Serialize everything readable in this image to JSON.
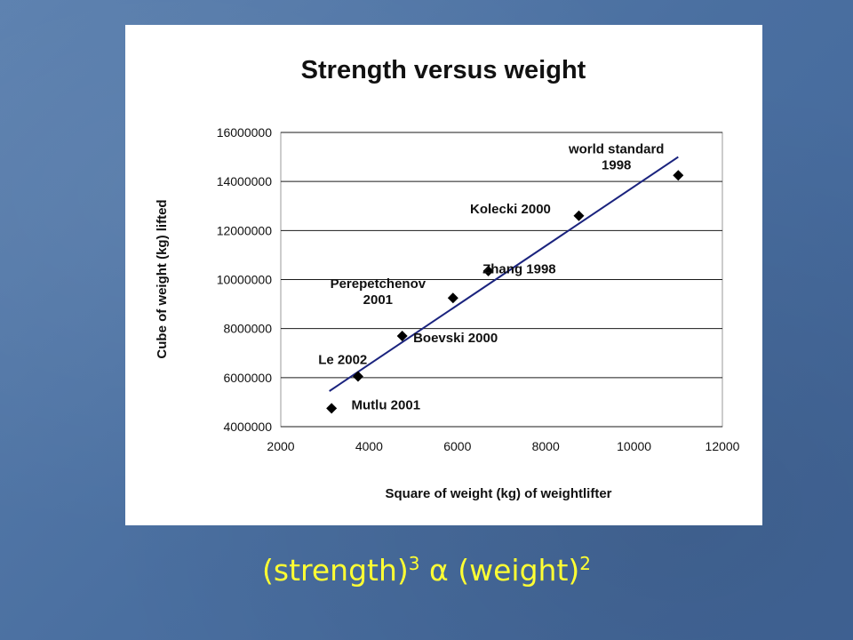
{
  "chart_data": {
    "type": "scatter",
    "title": "Strength versus weight",
    "xlabel": "Square of weight (kg) of weightlifter",
    "ylabel": "Cube of weight (kg) lifted",
    "xlim": [
      2000,
      12000
    ],
    "ylim": [
      4000000,
      16000000
    ],
    "xticks": [
      "2000",
      "4000",
      "6000",
      "8000",
      "10000",
      "12000"
    ],
    "yticks": [
      "4000000",
      "6000000",
      "8000000",
      "10000000",
      "12000000",
      "14000000",
      "16000000"
    ],
    "grid": "horizontal",
    "marker_color": "#000000",
    "trendline_color": "#1a237e",
    "points": [
      {
        "x": 3150,
        "y": 4750000
      },
      {
        "x": 3750,
        "y": 6050000
      },
      {
        "x": 4750,
        "y": 7700000
      },
      {
        "x": 5900,
        "y": 9250000
      },
      {
        "x": 6700,
        "y": 10350000
      },
      {
        "x": 8750,
        "y": 12600000
      },
      {
        "x": 11000,
        "y": 14250000
      }
    ],
    "trendline": [
      {
        "x": 3100,
        "y": 5450000
      },
      {
        "x": 11000,
        "y": 15000000
      }
    ],
    "annotations": [
      {
        "lines": [
          "Mutlu 2001"
        ],
        "x": 3600,
        "y": 4700000,
        "anchor": "start"
      },
      {
        "lines": [
          "Le 2002"
        ],
        "x": 2850,
        "y": 6550000,
        "anchor": "start"
      },
      {
        "lines": [
          "Boevski 2000"
        ],
        "x": 5000,
        "y": 7450000,
        "anchor": "start"
      },
      {
        "lines": [
          "Perepetchenov",
          "2001"
        ],
        "x": 4200,
        "y": 9650000,
        "anchor": "middle"
      },
      {
        "lines": [
          "Zhang 1998"
        ],
        "x": 7400,
        "y": 10250000,
        "anchor": "middle"
      },
      {
        "lines": [
          "Kolecki 2000"
        ],
        "x": 7200,
        "y": 12700000,
        "anchor": "middle"
      },
      {
        "lines": [
          "world standard",
          "1998"
        ],
        "x": 9600,
        "y": 15150000,
        "anchor": "middle"
      }
    ]
  },
  "caption": {
    "strength": "(strength)",
    "exp3": "3",
    "alpha": "α",
    "weight": "(weight)",
    "exp2": "2",
    "color": "#ffff33"
  }
}
